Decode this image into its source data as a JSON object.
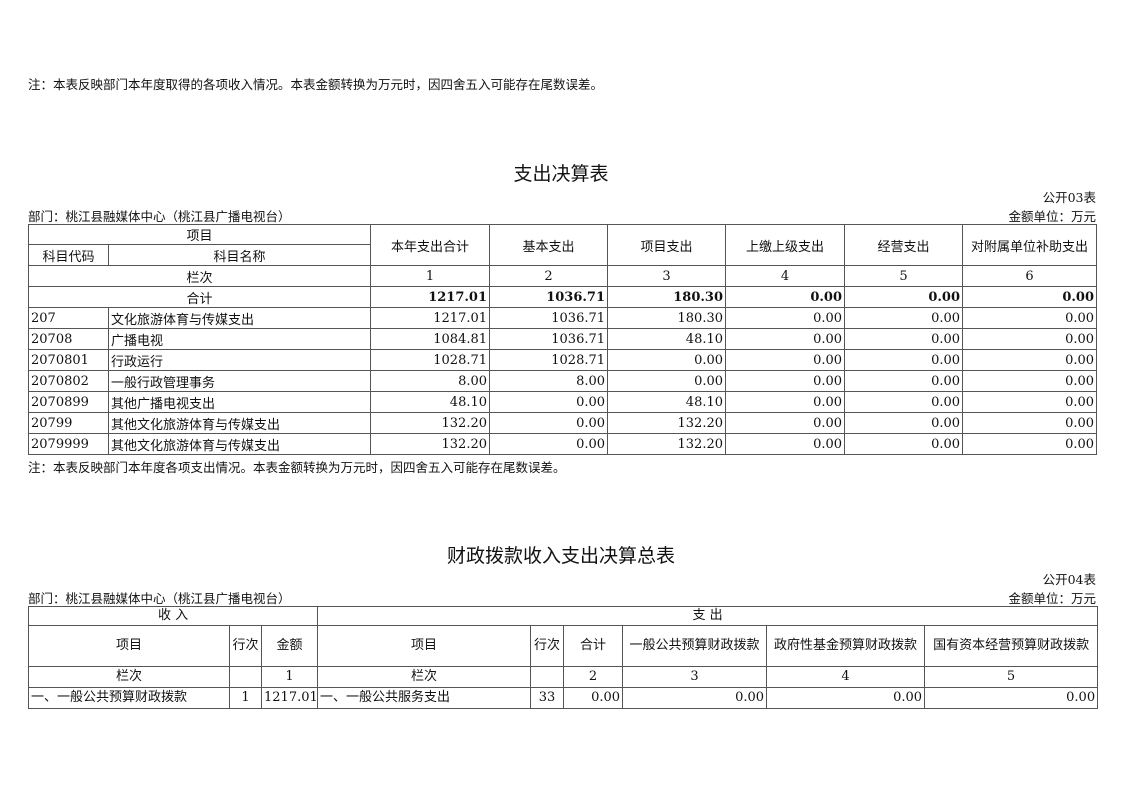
{
  "top_note": "注：本表反映部门本年度取得的各项收入情况。本表金额转换为万元时，因四舍五入可能存在尾数误差。",
  "t1": {
    "title": "支出决算表",
    "code": "公开03表",
    "dept": "部门：桃江县融媒体中心（桃江县广播电视台）",
    "unit": "金额单位：万元",
    "h_item": "项目",
    "h_code": "科目代码",
    "h_name": "科目名称",
    "cols": [
      "本年支出合计",
      "基本支出",
      "项目支出",
      "上缴上级支出",
      "经营支出",
      "对附属单位补助支出"
    ],
    "lanci": "栏次",
    "nums": [
      "1",
      "2",
      "3",
      "4",
      "5",
      "6"
    ],
    "total_label": "合计",
    "total": [
      "1217.01",
      "1036.71",
      "180.30",
      "0.00",
      "0.00",
      "0.00"
    ],
    "rows": [
      {
        "code": "207",
        "name": "文化旅游体育与传媒支出",
        "v": [
          "1217.01",
          "1036.71",
          "180.30",
          "0.00",
          "0.00",
          "0.00"
        ]
      },
      {
        "code": "20708",
        "name": "广播电视",
        "v": [
          "1084.81",
          "1036.71",
          "48.10",
          "0.00",
          "0.00",
          "0.00"
        ]
      },
      {
        "code": "2070801",
        "name": "行政运行",
        "v": [
          "1028.71",
          "1028.71",
          "0.00",
          "0.00",
          "0.00",
          "0.00"
        ]
      },
      {
        "code": "2070802",
        "name": "一般行政管理事务",
        "v": [
          "8.00",
          "8.00",
          "0.00",
          "0.00",
          "0.00",
          "0.00"
        ]
      },
      {
        "code": "2070899",
        "name": "其他广播电视支出",
        "v": [
          "48.10",
          "0.00",
          "48.10",
          "0.00",
          "0.00",
          "0.00"
        ]
      },
      {
        "code": "20799",
        "name": "其他文化旅游体育与传媒支出",
        "v": [
          "132.20",
          "0.00",
          "132.20",
          "0.00",
          "0.00",
          "0.00"
        ]
      },
      {
        "code": "2079999",
        "name": "其他文化旅游体育与传媒支出",
        "v": [
          "132.20",
          "0.00",
          "132.20",
          "0.00",
          "0.00",
          "0.00"
        ]
      }
    ],
    "note": "注：本表反映部门本年度各项支出情况。本表金额转换为万元时，因四舍五入可能存在尾数误差。"
  },
  "t2": {
    "title": "财政拨款收入支出决算总表",
    "code": "公开04表",
    "dept": "部门：桃江县融媒体中心（桃江县广播电视台）",
    "unit": "金额单位：万元",
    "income": "收 入",
    "expense": "支 出",
    "h": [
      "项目",
      "行次",
      "金额",
      "项目",
      "行次",
      "合计",
      "一般公共预算财政拨款",
      "政府性基金预算财政拨款",
      "国有资本经营预算财政拨款"
    ],
    "lanci": "栏次",
    "nums": [
      "1",
      "2",
      "3",
      "4",
      "5"
    ],
    "row": [
      "一、一般公共预算财政拨款",
      "1",
      "1217.01",
      "一、一般公共服务支出",
      "33",
      "0.00",
      "0.00",
      "0.00",
      "0.00"
    ]
  }
}
